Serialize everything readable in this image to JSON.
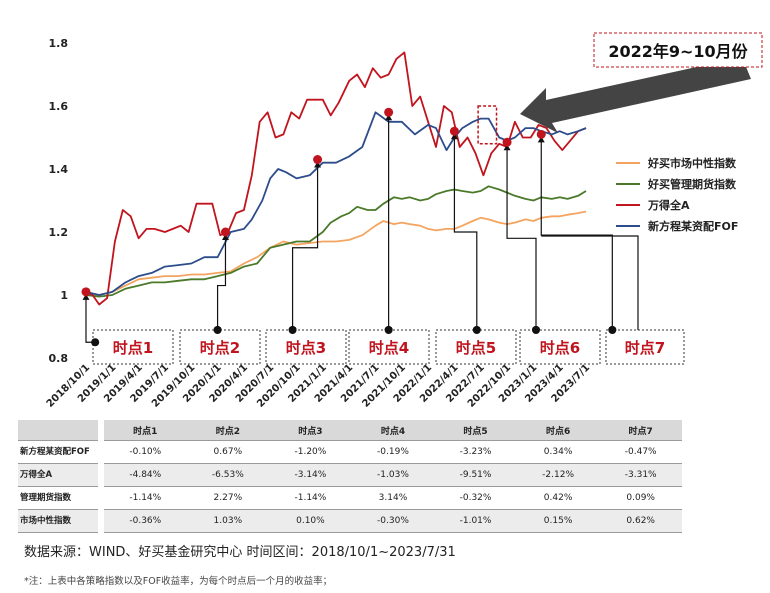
{
  "chart_data": {
    "type": "line",
    "x_ticks": [
      "2018/10/1",
      "2019/1/1",
      "2019/4/1",
      "2019/7/1",
      "2019/10/1",
      "2020/1/1",
      "2020/4/1",
      "2020/7/1",
      "2020/10/1",
      "2021/1/1",
      "2021/4/1",
      "2021/7/1",
      "2021/10/1",
      "2022/1/1",
      "2022/4/1",
      "2022/7/1",
      "2022/10/1",
      "2023/1/1",
      "2023/4/1",
      "2023/7/1"
    ],
    "y_ticks": [
      "0.8",
      "1",
      "1.2",
      "1.4",
      "1.6",
      "1.8"
    ],
    "ylim": [
      0.8,
      1.8
    ],
    "xlim": [
      0,
      19
    ],
    "grid": false,
    "legend_position": "right",
    "series": [
      {
        "name": "好买市场中性指数",
        "color": "#f4a460",
        "points": [
          [
            0,
            1.0
          ],
          [
            0.5,
            1.0
          ],
          [
            1,
            1.01
          ],
          [
            1.5,
            1.03
          ],
          [
            2,
            1.05
          ],
          [
            2.5,
            1.055
          ],
          [
            3,
            1.06
          ],
          [
            3.5,
            1.06
          ],
          [
            4,
            1.065
          ],
          [
            4.5,
            1.065
          ],
          [
            5,
            1.07
          ],
          [
            5.5,
            1.075
          ],
          [
            6,
            1.1
          ],
          [
            6.5,
            1.12
          ],
          [
            7,
            1.15
          ],
          [
            7.5,
            1.17
          ],
          [
            8,
            1.16
          ],
          [
            8.5,
            1.165
          ],
          [
            9,
            1.17
          ],
          [
            9.5,
            1.17
          ],
          [
            10,
            1.175
          ],
          [
            10.5,
            1.19
          ],
          [
            11,
            1.22
          ],
          [
            11.3,
            1.235
          ],
          [
            11.7,
            1.225
          ],
          [
            12,
            1.23
          ],
          [
            12.3,
            1.225
          ],
          [
            12.7,
            1.22
          ],
          [
            13,
            1.21
          ],
          [
            13.3,
            1.205
          ],
          [
            13.7,
            1.21
          ],
          [
            14,
            1.21
          ],
          [
            14.3,
            1.22
          ],
          [
            14.7,
            1.235
          ],
          [
            15,
            1.245
          ],
          [
            15.3,
            1.24
          ],
          [
            15.7,
            1.23
          ],
          [
            16,
            1.225
          ],
          [
            16.3,
            1.23
          ],
          [
            16.7,
            1.24
          ],
          [
            17,
            1.235
          ],
          [
            17.3,
            1.245
          ],
          [
            17.7,
            1.25
          ],
          [
            18,
            1.25
          ],
          [
            18.3,
            1.255
          ],
          [
            18.7,
            1.26
          ],
          [
            19,
            1.265
          ]
        ]
      },
      {
        "name": "好买管理期货指数",
        "color": "#4a7a2a",
        "points": [
          [
            0,
            1.0
          ],
          [
            0.5,
            0.995
          ],
          [
            1,
            1.0
          ],
          [
            1.5,
            1.02
          ],
          [
            2,
            1.03
          ],
          [
            2.5,
            1.04
          ],
          [
            3,
            1.04
          ],
          [
            3.5,
            1.045
          ],
          [
            4,
            1.05
          ],
          [
            4.5,
            1.05
          ],
          [
            5,
            1.06
          ],
          [
            5.5,
            1.07
          ],
          [
            6,
            1.09
          ],
          [
            6.5,
            1.1
          ],
          [
            7,
            1.15
          ],
          [
            7.5,
            1.16
          ],
          [
            8,
            1.17
          ],
          [
            8.5,
            1.17
          ],
          [
            9,
            1.2
          ],
          [
            9.3,
            1.23
          ],
          [
            9.7,
            1.25
          ],
          [
            10,
            1.26
          ],
          [
            10.3,
            1.28
          ],
          [
            10.7,
            1.27
          ],
          [
            11,
            1.27
          ],
          [
            11.3,
            1.29
          ],
          [
            11.7,
            1.31
          ],
          [
            12,
            1.305
          ],
          [
            12.3,
            1.31
          ],
          [
            12.7,
            1.3
          ],
          [
            13,
            1.305
          ],
          [
            13.3,
            1.32
          ],
          [
            13.7,
            1.33
          ],
          [
            14,
            1.335
          ],
          [
            14.3,
            1.33
          ],
          [
            14.7,
            1.325
          ],
          [
            15,
            1.33
          ],
          [
            15.3,
            1.345
          ],
          [
            15.7,
            1.335
          ],
          [
            16,
            1.325
          ],
          [
            16.3,
            1.315
          ],
          [
            16.7,
            1.305
          ],
          [
            17,
            1.3
          ],
          [
            17.3,
            1.31
          ],
          [
            17.7,
            1.305
          ],
          [
            18,
            1.31
          ],
          [
            18.3,
            1.305
          ],
          [
            18.7,
            1.315
          ],
          [
            19,
            1.33
          ]
        ]
      },
      {
        "name": "万得全A",
        "color": "#c0141e",
        "points": [
          [
            0,
            1.01
          ],
          [
            0.25,
            1.0
          ],
          [
            0.5,
            0.97
          ],
          [
            0.8,
            0.99
          ],
          [
            1.1,
            1.17
          ],
          [
            1.4,
            1.27
          ],
          [
            1.7,
            1.25
          ],
          [
            2,
            1.18
          ],
          [
            2.3,
            1.21
          ],
          [
            2.6,
            1.21
          ],
          [
            3,
            1.2
          ],
          [
            3.3,
            1.21
          ],
          [
            3.6,
            1.22
          ],
          [
            3.9,
            1.2
          ],
          [
            4.2,
            1.29
          ],
          [
            4.5,
            1.29
          ],
          [
            4.8,
            1.29
          ],
          [
            5.1,
            1.19
          ],
          [
            5.4,
            1.2
          ],
          [
            5.7,
            1.26
          ],
          [
            6,
            1.27
          ],
          [
            6.3,
            1.38
          ],
          [
            6.6,
            1.55
          ],
          [
            6.9,
            1.58
          ],
          [
            7.2,
            1.5
          ],
          [
            7.5,
            1.51
          ],
          [
            7.8,
            1.58
          ],
          [
            8.1,
            1.56
          ],
          [
            8.4,
            1.62
          ],
          [
            8.7,
            1.62
          ],
          [
            9,
            1.62
          ],
          [
            9.3,
            1.57
          ],
          [
            9.6,
            1.61
          ],
          [
            10,
            1.68
          ],
          [
            10.3,
            1.7
          ],
          [
            10.6,
            1.66
          ],
          [
            10.9,
            1.72
          ],
          [
            11.2,
            1.69
          ],
          [
            11.5,
            1.7
          ],
          [
            11.8,
            1.75
          ],
          [
            12.1,
            1.77
          ],
          [
            12.4,
            1.6
          ],
          [
            12.7,
            1.63
          ],
          [
            13,
            1.55
          ],
          [
            13.3,
            1.47
          ],
          [
            13.6,
            1.6
          ],
          [
            13.9,
            1.58
          ],
          [
            14.2,
            1.47
          ],
          [
            14.5,
            1.5
          ],
          [
            14.8,
            1.45
          ],
          [
            15.1,
            1.38
          ],
          [
            15.4,
            1.45
          ],
          [
            15.7,
            1.48
          ],
          [
            16,
            1.47
          ],
          [
            16.3,
            1.55
          ],
          [
            16.6,
            1.5
          ],
          [
            16.9,
            1.5
          ],
          [
            17.2,
            1.54
          ],
          [
            17.5,
            1.53
          ],
          [
            17.8,
            1.49
          ],
          [
            18.1,
            1.46
          ],
          [
            18.4,
            1.49
          ],
          [
            18.7,
            1.52
          ],
          [
            19,
            1.53
          ]
        ]
      },
      {
        "name": "新方程某资配FOF",
        "color": "#2c4c8c",
        "points": [
          [
            0,
            1.01
          ],
          [
            0.5,
            1.0
          ],
          [
            1,
            1.01
          ],
          [
            1.5,
            1.04
          ],
          [
            2,
            1.06
          ],
          [
            2.5,
            1.07
          ],
          [
            3,
            1.09
          ],
          [
            3.5,
            1.095
          ],
          [
            4,
            1.1
          ],
          [
            4.5,
            1.12
          ],
          [
            5,
            1.12
          ],
          [
            5.5,
            1.2
          ],
          [
            6,
            1.21
          ],
          [
            6.3,
            1.24
          ],
          [
            6.7,
            1.3
          ],
          [
            7,
            1.37
          ],
          [
            7.3,
            1.4
          ],
          [
            7.6,
            1.39
          ],
          [
            8,
            1.37
          ],
          [
            8.5,
            1.38
          ],
          [
            9,
            1.42
          ],
          [
            9.5,
            1.42
          ],
          [
            10,
            1.44
          ],
          [
            10.5,
            1.47
          ],
          [
            11,
            1.58
          ],
          [
            11.5,
            1.55
          ],
          [
            12,
            1.55
          ],
          [
            12.5,
            1.51
          ],
          [
            13,
            1.54
          ],
          [
            13.3,
            1.53
          ],
          [
            13.7,
            1.46
          ],
          [
            14,
            1.5
          ],
          [
            14.3,
            1.53
          ],
          [
            14.7,
            1.55
          ],
          [
            15,
            1.56
          ],
          [
            15.3,
            1.56
          ],
          [
            15.7,
            1.5
          ],
          [
            16,
            1.49
          ],
          [
            16.3,
            1.5
          ],
          [
            16.7,
            1.53
          ],
          [
            17,
            1.53
          ],
          [
            17.3,
            1.52
          ],
          [
            17.7,
            1.51
          ],
          [
            18,
            1.52
          ],
          [
            18.3,
            1.51
          ],
          [
            18.7,
            1.52
          ],
          [
            19,
            1.53
          ]
        ]
      }
    ],
    "event_points": [
      {
        "x": 0,
        "y": 1.01,
        "label_x": 0.35,
        "mid_y": 0.85
      },
      {
        "x": 5.3,
        "y": 1.2,
        "label_x": 5.0,
        "mid_y": 1.03
      },
      {
        "x": 8.8,
        "y": 1.43,
        "label_x": 7.85,
        "mid_y": 1.15
      },
      {
        "x": 11.5,
        "y": 1.58,
        "label_x": 11.5,
        "mid_y": null
      },
      {
        "x": 14.0,
        "y": 1.52,
        "label_x": 14.85,
        "mid_y": 1.2
      },
      {
        "x": 16.0,
        "y": 1.485,
        "label_x": 17.1,
        "mid_y": 1.18
      },
      {
        "x": 17.3,
        "y": 1.51,
        "label_x": 20.0,
        "mid_y": 1.19
      }
    ],
    "time_labels": [
      "时点1",
      "时点2",
      "时点3",
      "时点4",
      "时点5",
      "时点6",
      "时点7"
    ],
    "highlight": {
      "label": "2022年9~10月份",
      "x_range": [
        14.9,
        15.6
      ],
      "y_range": [
        1.48,
        1.6
      ]
    }
  },
  "table": {
    "headers": [
      "",
      "时点1",
      "时点2",
      "时点3",
      "时点4",
      "时点5",
      "时点6",
      "时点7"
    ],
    "rows": [
      {
        "label": "新方程某资配FOF",
        "values": [
          "-0.10%",
          "0.67%",
          "-1.20%",
          "-0.19%",
          "-3.23%",
          "0.34%",
          "-0.47%"
        ]
      },
      {
        "label": "万得全A",
        "values": [
          "-4.84%",
          "-6.53%",
          "-3.14%",
          "-1.03%",
          "-9.51%",
          "-2.12%",
          "-3.31%"
        ]
      },
      {
        "label": "管理期货指数",
        "values": [
          "-1.14%",
          "2.27%",
          "-1.14%",
          "3.14%",
          "-0.32%",
          "0.42%",
          "0.09%"
        ]
      },
      {
        "label": "市场中性指数",
        "values": [
          "-0.36%",
          "1.03%",
          "0.10%",
          "-0.30%",
          "-1.01%",
          "0.15%",
          "0.62%"
        ]
      }
    ]
  },
  "source_text": "数据来源：WIND、好买基金研究中心    时间区间：2018/10/1~2023/7/31",
  "note_text": "*注：上表中各策略指数以及FOF收益率，为每个时点后一个月的收益率；"
}
